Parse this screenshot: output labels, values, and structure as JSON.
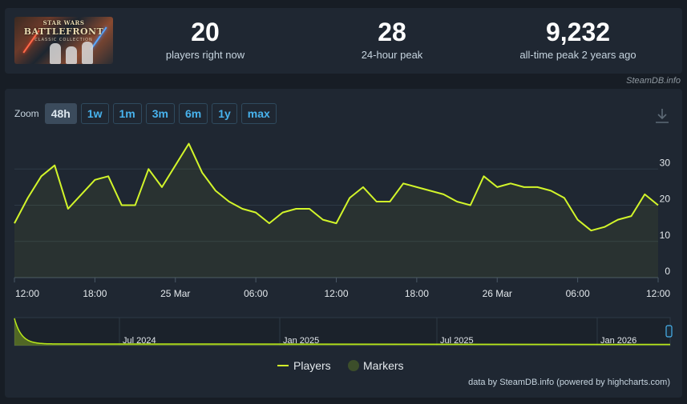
{
  "game": {
    "logo_line1": "STAR WARS",
    "logo_line2": "BATTLEFRONT",
    "logo_line3": "CLASSIC COLLECTION"
  },
  "stats": [
    {
      "value": "20",
      "label": "players right now"
    },
    {
      "value": "28",
      "label": "24-hour peak"
    },
    {
      "value": "9,232",
      "label": "all-time peak 2 years ago"
    }
  ],
  "credit_top": "SteamDB.info",
  "zoom": {
    "label": "Zoom",
    "buttons": [
      "48h",
      "1w",
      "1m",
      "3m",
      "6m",
      "1y",
      "max"
    ],
    "active": "48h"
  },
  "credit_bottom": "data by SteamDB.info (powered by highcharts.com)",
  "colors": {
    "line": "#d2f52a",
    "marker": "#3c4e2a",
    "grid": "#2e3a46",
    "navigator_line": "#b8e81a"
  },
  "chart_data": {
    "type": "line",
    "x_tick_labels": [
      "12:00",
      "18:00",
      "25 Mar",
      "06:00",
      "12:00",
      "18:00",
      "26 Mar",
      "06:00",
      "12:00"
    ],
    "y_tick_labels": [
      "0",
      "10",
      "20",
      "30"
    ],
    "ylim": [
      0,
      40
    ],
    "grid": true,
    "legend": [
      "Players",
      "Markers"
    ],
    "legend_placement": "bottom-center",
    "series": [
      {
        "name": "Players",
        "values": [
          15,
          22,
          28,
          31,
          19,
          23,
          27,
          28,
          20,
          20,
          30,
          25,
          31,
          37,
          29,
          24,
          21,
          19,
          18,
          15,
          18,
          19,
          19,
          16,
          15,
          22,
          25,
          21,
          21,
          26,
          25,
          24,
          23,
          21,
          20,
          28,
          25,
          26,
          25,
          25,
          24,
          22,
          16,
          13,
          14,
          16,
          17,
          23,
          20
        ]
      }
    ],
    "navigator": {
      "x_tick_labels": [
        "Jul 2024",
        "Jan 2025",
        "Jul 2025",
        "Jan 2026"
      ]
    }
  }
}
